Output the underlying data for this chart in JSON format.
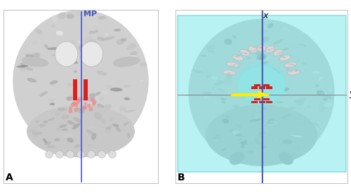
{
  "fig_width": 5.0,
  "fig_height": 2.75,
  "dpi": 100,
  "bg_color": "#ffffff",
  "panel_A": {
    "bounds": [
      0.01,
      0.05,
      0.44,
      0.9
    ],
    "label": "A",
    "label_fs": 10,
    "mp_label": "MP",
    "mp_label_color": "#4455bb",
    "mp_label_fs": 8,
    "blue_line_color": "#4455cc",
    "blue_line_lw": 1.2,
    "red_color": "#dd1111",
    "pink_color": "#ee8888"
  },
  "panel_B": {
    "bounds": [
      0.5,
      0.05,
      0.49,
      0.9
    ],
    "label": "B",
    "label_fs": 10,
    "cyan_color": "#7ee8ea",
    "cyan_edge": "#55cccc",
    "cyan_alpha": 0.55,
    "blue_line_color": "#4455cc",
    "blue_line_lw": 1.2,
    "gray_line_color": "#888888",
    "gray_line_lw": 0.8,
    "x_label": "x",
    "y_label": "y",
    "axis_label_fs": 9,
    "red_color": "#dd1111",
    "arrow_color": "#ffee00",
    "arrow_lw": 2.5
  }
}
